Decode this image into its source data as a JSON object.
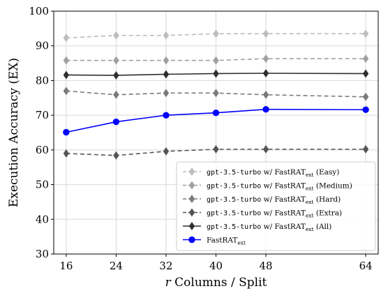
{
  "chart_data": {
    "type": "line",
    "xlabel_var": "r",
    "xlabel_rest": " Columns / Split",
    "ylabel": "Execution Accuracy (EX)",
    "x": [
      16,
      24,
      32,
      40,
      48,
      64
    ],
    "xlim": [
      14,
      66
    ],
    "ylim": [
      30,
      100
    ],
    "yticks": [
      30,
      40,
      50,
      60,
      70,
      80,
      90,
      100
    ],
    "grid": true,
    "legend_position": "lower-right",
    "series": [
      {
        "name_code": "gpt-3.5-turbo",
        "name_mid": " w/ FastRAT",
        "name_sub": "ext",
        "name_tail": " (Easy)",
        "values": [
          92.3,
          93.0,
          93.0,
          93.5,
          93.5,
          93.5
        ],
        "color": "#bdbdbd",
        "dashed": true,
        "marker": "diamond"
      },
      {
        "name_code": "gpt-3.5-turbo",
        "name_mid": " w/ FastRAT",
        "name_sub": "ext",
        "name_tail": " (Medium)",
        "values": [
          85.8,
          85.8,
          85.8,
          85.8,
          86.3,
          86.3
        ],
        "color": "#a0a0a0",
        "dashed": true,
        "marker": "diamond"
      },
      {
        "name_code": "gpt-3.5-turbo",
        "name_mid": " w/ FastRAT",
        "name_sub": "ext",
        "name_tail": " (Hard)",
        "values": [
          77.0,
          75.9,
          76.4,
          76.4,
          75.9,
          75.3
        ],
        "color": "#7a7a7a",
        "dashed": true,
        "marker": "diamond"
      },
      {
        "name_code": "gpt-3.5-turbo",
        "name_mid": " w/ FastRAT",
        "name_sub": "ext",
        "name_tail": " (Extra)",
        "values": [
          59.0,
          58.4,
          59.6,
          60.2,
          60.2,
          60.2
        ],
        "color": "#555555",
        "dashed": true,
        "marker": "diamond"
      },
      {
        "name_code": "gpt-3.5-turbo",
        "name_mid": " w/ FastRAT",
        "name_sub": "ext",
        "name_tail": " (All)",
        "values": [
          81.6,
          81.5,
          81.8,
          82.0,
          82.1,
          82.0
        ],
        "color": "#2f2f2f",
        "dashed": false,
        "marker": "diamond"
      },
      {
        "name_code": "",
        "name_mid": "FastRAT",
        "name_sub": "ext",
        "name_tail": "",
        "values": [
          65.1,
          68.1,
          70.0,
          70.7,
          71.7,
          71.6
        ],
        "color": "#0000ff",
        "dashed": false,
        "marker": "circle"
      }
    ]
  }
}
